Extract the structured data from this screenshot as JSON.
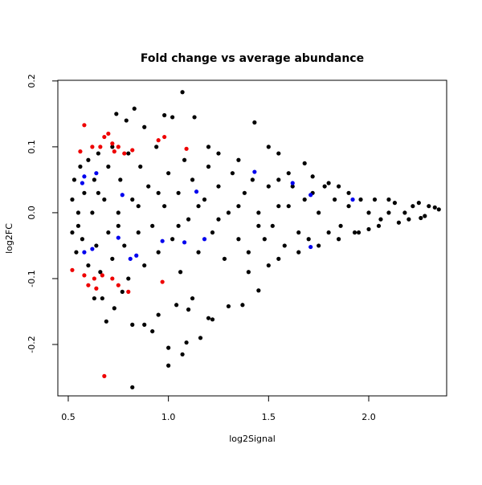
{
  "chart_data": {
    "type": "scatter",
    "title": "Fold change vs average abundance",
    "x_label": "log2Signal",
    "y_label": "log2FC",
    "xlim": [
      0.448,
      2.389
    ],
    "ylim": [
      -0.278,
      0.201
    ],
    "xticks": [
      0.5,
      {
        "value": 1.0,
        "label": "1.0"
      },
      1.5,
      {
        "value": 2.0,
        "label": "2.0"
      }
    ],
    "yticks": [
      -0.2,
      -0.1,
      {
        "value": 0.0,
        "label": "0.0"
      },
      0.1,
      0.2
    ],
    "series": [
      {
        "color": "#000000",
        "x": [
          1.07,
          0.83,
          0.74,
          0.98,
          1.02,
          1.13,
          1.43,
          0.79,
          0.88,
          0.67,
          0.69,
          0.82,
          0.82,
          1.0,
          1.0,
          1.07,
          1.09,
          1.16,
          0.88,
          0.92,
          1.2,
          1.22,
          1.1,
          1.3,
          1.37,
          1.45,
          1.04,
          0.95,
          0.73,
          0.63,
          0.77,
          1.12,
          2.33,
          2.3,
          2.25,
          2.2,
          2.1,
          2.0,
          1.9,
          1.85,
          1.8,
          1.72,
          1.6,
          1.65,
          1.55,
          1.5,
          1.4,
          1.35,
          1.25,
          1.2,
          1.5,
          1.55,
          1.68,
          1.75,
          1.85,
          1.95,
          2.05,
          2.15,
          2.28,
          0.52,
          0.52,
          0.53,
          0.54,
          0.55,
          0.56,
          0.57,
          0.58,
          0.6,
          0.6,
          0.62,
          0.63,
          0.64,
          0.65,
          0.66,
          0.68,
          0.7,
          0.7,
          0.72,
          0.72,
          0.75,
          0.76,
          0.78,
          0.8,
          0.8,
          0.82,
          0.85,
          0.86,
          0.88,
          0.9,
          0.92,
          0.94,
          0.95,
          0.98,
          1.0,
          1.02,
          1.05,
          1.06,
          1.08,
          1.1,
          1.12,
          1.15,
          1.18,
          1.2,
          1.22,
          1.25,
          1.28,
          1.3,
          1.32,
          1.35,
          1.38,
          1.4,
          1.42,
          1.45,
          1.48,
          1.5,
          1.52,
          1.55,
          1.58,
          1.6,
          1.62,
          1.65,
          1.68,
          1.7,
          1.72,
          1.75,
          1.78,
          1.8,
          1.83,
          1.86,
          1.9,
          1.93,
          1.96,
          2.0,
          2.03,
          2.06,
          2.1,
          2.13,
          2.18,
          2.22,
          2.26,
          2.35,
          0.55,
          0.65,
          0.75,
          0.85,
          0.95,
          1.05,
          1.15,
          1.25,
          1.35,
          1.45,
          1.55
        ],
        "values": [
          0.183,
          0.158,
          0.15,
          0.148,
          0.145,
          0.145,
          0.137,
          0.14,
          0.13,
          -0.13,
          -0.165,
          -0.17,
          -0.265,
          -0.205,
          -0.232,
          -0.215,
          -0.197,
          -0.19,
          -0.17,
          -0.18,
          -0.16,
          -0.162,
          -0.147,
          -0.142,
          -0.14,
          -0.118,
          -0.14,
          -0.155,
          -0.145,
          -0.13,
          -0.12,
          -0.13,
          0.008,
          0.01,
          0.015,
          -0.01,
          0.02,
          -0.025,
          0.03,
          0.04,
          0.045,
          0.055,
          0.06,
          -0.06,
          -0.07,
          -0.08,
          -0.09,
          0.08,
          0.09,
          0.1,
          0.1,
          0.09,
          0.075,
          -0.05,
          -0.04,
          -0.03,
          -0.02,
          -0.015,
          -0.005,
          0.02,
          -0.03,
          0.05,
          -0.06,
          0.0,
          0.07,
          -0.04,
          0.03,
          -0.08,
          0.08,
          0.0,
          0.05,
          -0.05,
          0.09,
          -0.09,
          0.02,
          -0.03,
          0.07,
          0.1,
          -0.07,
          0.0,
          0.05,
          -0.05,
          0.09,
          -0.1,
          0.02,
          -0.03,
          0.07,
          -0.08,
          0.04,
          -0.02,
          0.1,
          -0.06,
          0.01,
          0.06,
          -0.04,
          0.03,
          -0.09,
          0.08,
          -0.01,
          0.05,
          -0.06,
          0.02,
          0.07,
          -0.03,
          0.04,
          -0.07,
          0.0,
          0.06,
          -0.04,
          0.03,
          -0.06,
          0.05,
          0.0,
          -0.04,
          0.04,
          -0.02,
          0.05,
          -0.05,
          0.01,
          0.04,
          -0.03,
          0.02,
          -0.04,
          0.03,
          0.0,
          0.04,
          -0.03,
          0.02,
          -0.02,
          0.01,
          -0.03,
          0.02,
          0.0,
          0.02,
          -0.01,
          0.0,
          0.015,
          0.0,
          0.01,
          -0.008,
          0.005,
          -0.02,
          0.03,
          -0.02,
          0.01,
          0.03,
          -0.02,
          0.01,
          -0.01,
          0.01,
          -0.02,
          0.01
        ]
      },
      {
        "color": "#ee0000",
        "x": [
          0.58,
          0.56,
          0.62,
          0.68,
          0.7,
          0.72,
          0.75,
          0.78,
          0.82,
          0.95,
          0.98,
          1.09,
          0.52,
          0.58,
          0.6,
          0.63,
          0.64,
          0.67,
          0.72,
          0.75,
          0.8,
          0.97,
          0.68,
          0.66,
          0.73
        ],
        "values": [
          0.133,
          0.093,
          0.1,
          0.115,
          0.12,
          0.105,
          0.1,
          0.09,
          0.095,
          0.11,
          0.115,
          0.097,
          -0.087,
          -0.095,
          -0.11,
          -0.1,
          -0.115,
          -0.095,
          -0.1,
          -0.11,
          -0.12,
          -0.105,
          -0.248,
          0.1,
          0.093
        ]
      },
      {
        "color": "#0000ee",
        "x": [
          0.57,
          0.58,
          0.64,
          0.77,
          1.14,
          1.43,
          1.62,
          1.92,
          1.71,
          1.18,
          1.08,
          0.97,
          0.75,
          0.58,
          0.62,
          0.81,
          0.84,
          1.71
        ],
        "values": [
          0.045,
          0.055,
          0.06,
          0.027,
          0.032,
          0.062,
          0.045,
          0.02,
          -0.052,
          -0.04,
          -0.045,
          -0.043,
          -0.038,
          -0.06,
          -0.055,
          -0.07,
          -0.065,
          0.027
        ]
      }
    ]
  }
}
